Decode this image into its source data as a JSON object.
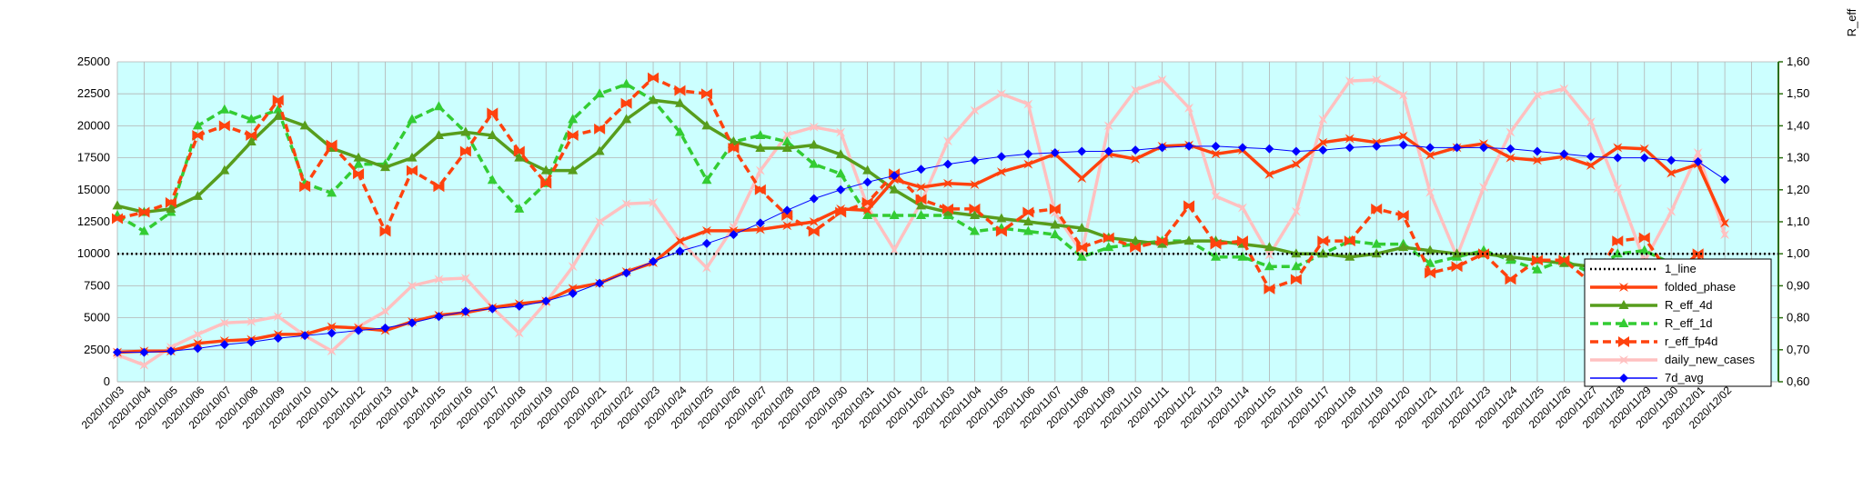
{
  "chart_data": {
    "type": "line",
    "y2label": "R_eff",
    "ylim": [
      0,
      25000
    ],
    "y_ticks": [
      "0",
      "2500",
      "5000",
      "7500",
      "10000",
      "12500",
      "15000",
      "17500",
      "20000",
      "22500",
      "25000"
    ],
    "y2lim": [
      0.6,
      1.6
    ],
    "y2_ticks": [
      "0,60",
      "0,70",
      "0,80",
      "0,90",
      "1,00",
      "1,10",
      "1,20",
      "1,30",
      "1,40",
      "1,50",
      "1,60"
    ],
    "grid": true,
    "legend_position": "bottom-right",
    "plot_background": "#ccffff",
    "categories": [
      "2020/10/03",
      "2020/10/04",
      "2020/10/05",
      "2020/10/06",
      "2020/10/07",
      "2020/10/08",
      "2020/10/09",
      "2020/10/10",
      "2020/10/11",
      "2020/10/12",
      "2020/10/13",
      "2020/10/14",
      "2020/10/15",
      "2020/10/16",
      "2020/10/17",
      "2020/10/18",
      "2020/10/19",
      "2020/10/20",
      "2020/10/21",
      "2020/10/22",
      "2020/10/23",
      "2020/10/24",
      "2020/10/25",
      "2020/10/26",
      "2020/10/27",
      "2020/10/28",
      "2020/10/29",
      "2020/10/30",
      "2020/10/31",
      "2020/11/01",
      "2020/11/02",
      "2020/11/03",
      "2020/11/04",
      "2020/11/05",
      "2020/11/06",
      "2020/11/07",
      "2020/11/08",
      "2020/11/09",
      "2020/11/10",
      "2020/11/11",
      "2020/11/12",
      "2020/11/13",
      "2020/11/14",
      "2020/11/15",
      "2020/11/16",
      "2020/11/17",
      "2020/11/18",
      "2020/11/19",
      "2020/11/20",
      "2020/11/21",
      "2020/11/22",
      "2020/11/23",
      "2020/11/24",
      "2020/11/25",
      "2020/11/26",
      "2020/11/27",
      "2020/11/28",
      "2020/11/29",
      "2020/11/30",
      "2020/12/01",
      "2020/12/02"
    ],
    "series": [
      {
        "name": "1_line",
        "axis": "right",
        "color": "#000000",
        "style": "dotted",
        "marker": "none",
        "values": [
          1,
          1,
          1,
          1,
          1,
          1,
          1,
          1,
          1,
          1,
          1,
          1,
          1,
          1,
          1,
          1,
          1,
          1,
          1,
          1,
          1,
          1,
          1,
          1,
          1,
          1,
          1,
          1,
          1,
          1,
          1,
          1,
          1,
          1,
          1,
          1,
          1,
          1,
          1,
          1,
          1,
          1,
          1,
          1,
          1,
          1,
          1,
          1,
          1,
          1,
          1,
          1,
          1,
          1,
          1,
          1,
          1,
          1,
          1,
          1,
          1
        ]
      },
      {
        "name": "folded_phase",
        "axis": "left",
        "color": "#ff420e",
        "style": "solid",
        "marker": "star",
        "values": [
          2300,
          2400,
          2400,
          3000,
          3200,
          3300,
          3700,
          3700,
          4300,
          4200,
          4000,
          4700,
          5200,
          5400,
          5800,
          6100,
          6300,
          7300,
          7700,
          8600,
          9300,
          11000,
          11800,
          11800,
          11900,
          12200,
          12500,
          13500,
          13400,
          15800,
          15200,
          15500,
          15400,
          16400,
          17000,
          17800,
          15900,
          17800,
          17400,
          18400,
          18500,
          17800,
          18100,
          16200,
          17000,
          18700,
          19000,
          18700,
          19200,
          17700,
          18300,
          18600,
          17500,
          17300,
          17600,
          16900,
          18300,
          18200,
          16300,
          17000,
          12400
        ]
      },
      {
        "name": "R_eff_4d",
        "axis": "right",
        "color": "#579d1c",
        "style": "solid",
        "marker": "triangle",
        "values": [
          1.15,
          1.13,
          1.14,
          1.18,
          1.26,
          1.35,
          1.43,
          1.4,
          1.33,
          1.3,
          1.27,
          1.3,
          1.37,
          1.38,
          1.37,
          1.3,
          1.26,
          1.26,
          1.32,
          1.42,
          1.48,
          1.47,
          1.4,
          1.35,
          1.33,
          1.33,
          1.34,
          1.31,
          1.26,
          1.2,
          1.15,
          1.13,
          1.12,
          1.11,
          1.1,
          1.09,
          1.08,
          1.05,
          1.04,
          1.03,
          1.04,
          1.04,
          1.03,
          1.02,
          1.0,
          1.0,
          0.99,
          1.0,
          1.02,
          1.01,
          1.0,
          1.0,
          0.99,
          0.98,
          0.97,
          0.96,
          0.96,
          0.97,
          0.96,
          0.97,
          0.91
        ]
      },
      {
        "name": "R_eff_1d",
        "axis": "right",
        "color": "#33cc33",
        "style": "dashed",
        "marker": "triangle",
        "values": [
          1.12,
          1.07,
          1.13,
          1.4,
          1.45,
          1.42,
          1.45,
          1.22,
          1.19,
          1.28,
          1.28,
          1.42,
          1.46,
          1.38,
          1.23,
          1.14,
          1.22,
          1.42,
          1.5,
          1.53,
          1.48,
          1.38,
          1.23,
          1.35,
          1.37,
          1.35,
          1.28,
          1.25,
          1.12,
          1.12,
          1.12,
          1.12,
          1.07,
          1.08,
          1.07,
          1.06,
          0.99,
          1.02,
          1.03,
          1.04,
          1.04,
          0.99,
          0.99,
          0.96,
          0.96,
          1.0,
          1.04,
          1.03,
          1.03,
          0.97,
          0.99,
          1.01,
          0.98,
          0.95,
          0.98,
          0.94,
          1.0,
          1.01,
          0.97,
          0.97,
          0.76
        ]
      },
      {
        "name": "r_eff_fp4d",
        "axis": "right",
        "color": "#ff420e",
        "style": "dashed",
        "marker": "x",
        "values": [
          1.11,
          1.13,
          1.16,
          1.37,
          1.4,
          1.37,
          1.48,
          1.21,
          1.34,
          1.25,
          1.07,
          1.26,
          1.21,
          1.32,
          1.44,
          1.32,
          1.22,
          1.37,
          1.39,
          1.47,
          1.55,
          1.51,
          1.5,
          1.33,
          1.2,
          1.12,
          1.07,
          1.13,
          1.16,
          1.25,
          1.17,
          1.14,
          1.14,
          1.07,
          1.13,
          1.14,
          1.02,
          1.05,
          1.02,
          1.04,
          1.15,
          1.03,
          1.04,
          0.89,
          0.92,
          1.04,
          1.04,
          1.14,
          1.12,
          0.94,
          0.96,
          1.0,
          0.92,
          0.98,
          0.98,
          0.91,
          1.04,
          1.05,
          0.93,
          1.0,
          0.68
        ]
      },
      {
        "name": "daily_new_cases",
        "axis": "left",
        "color": "#ffc0c0",
        "style": "solid",
        "marker": "star",
        "values": [
          2100,
          1300,
          2700,
          3700,
          4600,
          4700,
          5100,
          3600,
          2400,
          4300,
          5500,
          7500,
          8000,
          8100,
          5800,
          3800,
          6200,
          9000,
          12500,
          13900,
          14000,
          11000,
          8900,
          12100,
          16500,
          19300,
          19900,
          19500,
          13700,
          10300,
          14000,
          18800,
          21200,
          22500,
          21700,
          13200,
          10100,
          20000,
          22800,
          23600,
          21400,
          14500,
          13600,
          9900,
          13300,
          20500,
          23500,
          23600,
          22400,
          14800,
          9800,
          15200,
          19500,
          22400,
          22900,
          20300,
          15100,
          9400,
          13300,
          17900,
          11500
        ]
      },
      {
        "name": "7d_avg",
        "axis": "left",
        "color": "#0000ff",
        "style": "solid",
        "marker": "diamond",
        "values": [
          2300,
          2300,
          2400,
          2600,
          2900,
          3100,
          3400,
          3600,
          3800,
          4000,
          4200,
          4600,
          5100,
          5500,
          5700,
          5900,
          6300,
          6900,
          7700,
          8500,
          9400,
          10200,
          10800,
          11500,
          12400,
          13400,
          14300,
          15000,
          15600,
          16100,
          16600,
          17000,
          17300,
          17600,
          17800,
          17900,
          18000,
          18000,
          18100,
          18300,
          18400,
          18400,
          18300,
          18200,
          18000,
          18100,
          18300,
          18400,
          18500,
          18300,
          18300,
          18300,
          18200,
          18000,
          17800,
          17600,
          17500,
          17500,
          17300,
          17200,
          15800
        ]
      }
    ]
  }
}
